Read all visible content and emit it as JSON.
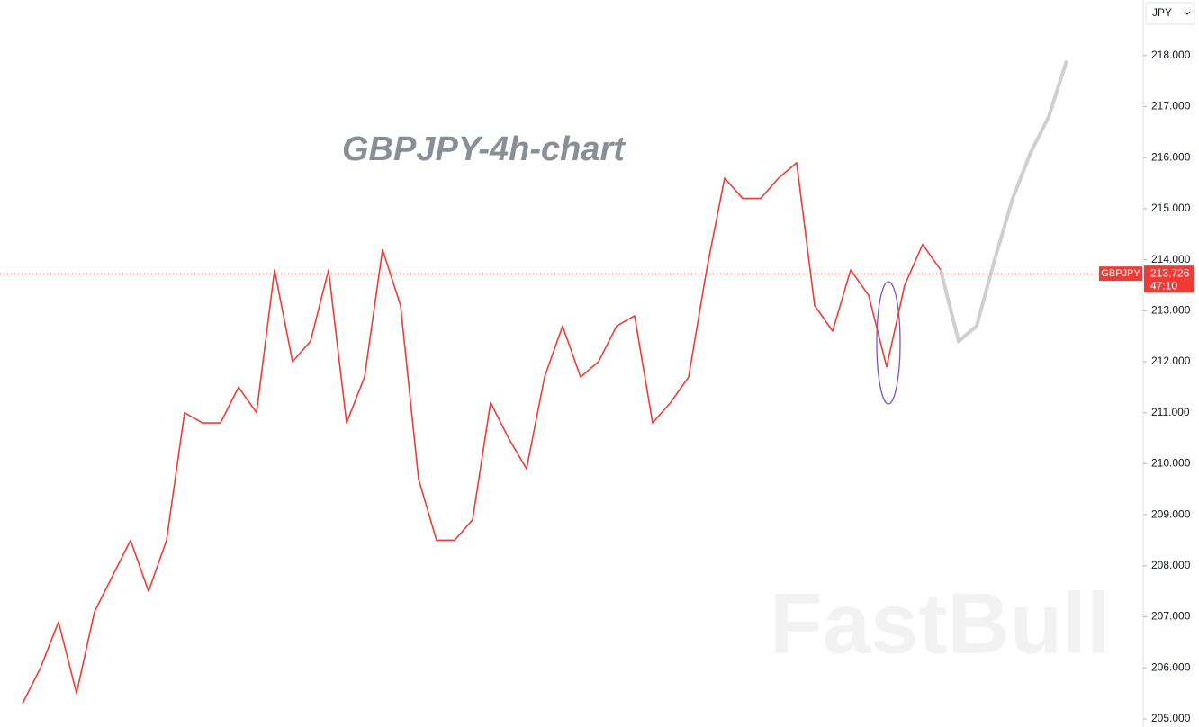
{
  "chart_data": {
    "type": "line",
    "title": "GBPJPY-4h-chart",
    "watermark": "FastBull",
    "currency": "JPY",
    "symbol": "GBPJPY",
    "last_price": 213.726,
    "countdown": "47:10",
    "categories": [
      null,
      null,
      null,
      null,
      null,
      null,
      null,
      null,
      null,
      null,
      null,
      null,
      null,
      null,
      null,
      null,
      null,
      null,
      null,
      null,
      null,
      null,
      null,
      null,
      null,
      null,
      null,
      null,
      null,
      null,
      null,
      null,
      null,
      null,
      null,
      null,
      null,
      null,
      null,
      null,
      null,
      null,
      null,
      null,
      null,
      null,
      null,
      null,
      null,
      null,
      null,
      null,
      null,
      null,
      null,
      null,
      null,
      null,
      null
    ],
    "series": [
      {
        "name": "GBPJPY",
        "color": "#ef3b36",
        "values": [
          205.3,
          206.0,
          206.9,
          205.5,
          207.1,
          207.8,
          208.5,
          207.5,
          208.5,
          211.0,
          210.8,
          210.8,
          211.5,
          211.0,
          213.8,
          212.0,
          212.4,
          213.8,
          210.8,
          211.7,
          214.2,
          213.1,
          209.7,
          208.5,
          208.5,
          208.9,
          211.2,
          210.5,
          209.9,
          211.7,
          212.7,
          211.7,
          212.0,
          212.7,
          212.9,
          210.8,
          211.2,
          211.7,
          213.8,
          215.6,
          215.2,
          215.2,
          215.6,
          215.9,
          213.1,
          212.6,
          213.8,
          213.3,
          211.9,
          213.5,
          214.3,
          213.8,
          null,
          null,
          null,
          null,
          null,
          null,
          null
        ]
      },
      {
        "color": "#cfcfcf",
        "values": [
          null,
          null,
          null,
          null,
          null,
          null,
          null,
          null,
          null,
          null,
          null,
          null,
          null,
          null,
          null,
          null,
          null,
          null,
          null,
          null,
          null,
          null,
          null,
          null,
          null,
          null,
          null,
          null,
          null,
          null,
          null,
          null,
          null,
          null,
          null,
          null,
          null,
          null,
          null,
          null,
          null,
          null,
          null,
          null,
          null,
          null,
          null,
          null,
          null,
          null,
          null,
          213.8,
          212.4,
          212.7,
          214.0,
          215.2,
          216.1,
          216.8,
          217.9
        ]
      }
    ],
    "ylim": [
      204.84,
      219.09
    ],
    "yticks": [
      {
        "value": 205,
        "label": "205.000"
      },
      {
        "value": 206,
        "label": "206.000"
      },
      {
        "value": 207,
        "label": "207.000"
      },
      {
        "value": 208,
        "label": "208.000"
      },
      {
        "value": 209,
        "label": "209.000"
      },
      {
        "value": 210,
        "label": "210.000"
      },
      {
        "value": 211,
        "label": "211.000"
      },
      {
        "value": 212,
        "label": "212.000"
      },
      {
        "value": 213,
        "label": "213.000"
      },
      {
        "value": 214,
        "label": "214.000"
      },
      {
        "value": 215,
        "label": "215.000"
      },
      {
        "value": 216,
        "label": "216.000"
      },
      {
        "value": 217,
        "label": "217.000"
      },
      {
        "value": 218,
        "label": "218.000"
      }
    ]
  }
}
